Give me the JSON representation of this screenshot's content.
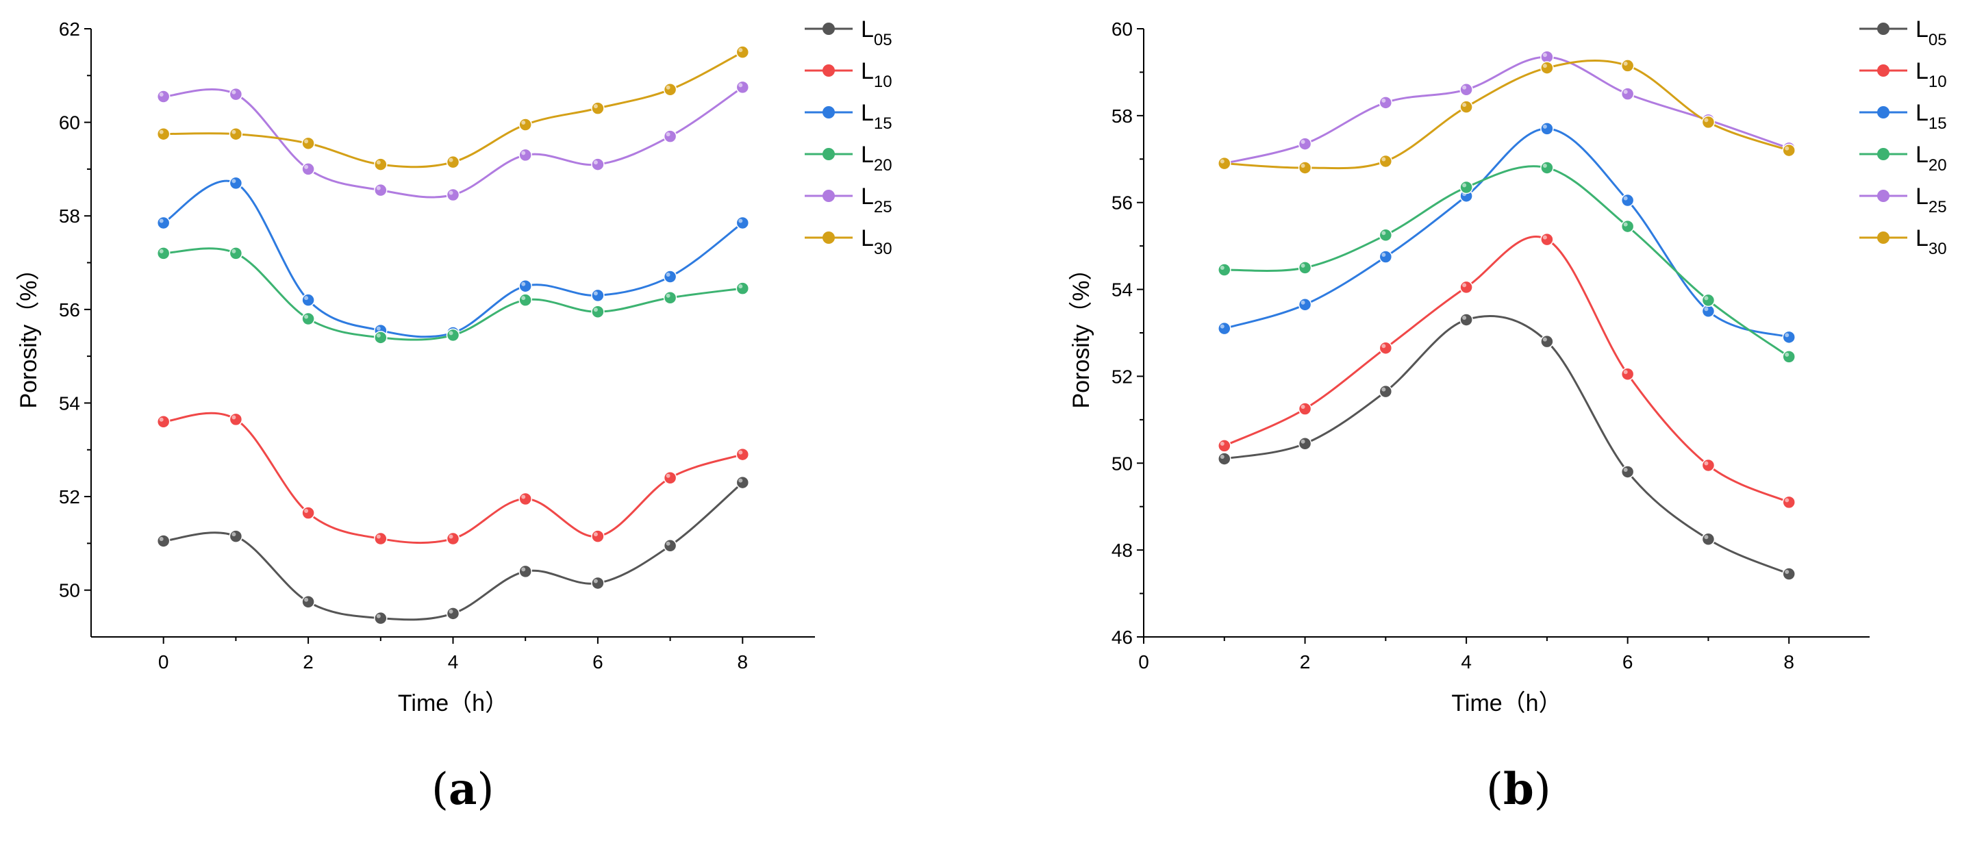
{
  "chart_data": [
    {
      "type": "line",
      "panel_label": "a",
      "xlabel": "Time（h）",
      "ylabel": "Porosity（%）",
      "xlim": [
        -1,
        9
      ],
      "ylim": [
        49,
        62
      ],
      "xticks": [
        0,
        2,
        4,
        6,
        8
      ],
      "yticks": [
        50,
        52,
        54,
        56,
        58,
        60,
        62
      ],
      "legend_position": "top-right",
      "x": [
        0,
        1,
        2,
        3,
        4,
        5,
        6,
        7,
        8
      ],
      "series": [
        {
          "name": "L",
          "sub": "05",
          "color": "#555555",
          "values": [
            51.05,
            51.15,
            49.75,
            49.4,
            49.5,
            50.4,
            50.15,
            50.95,
            52.3
          ]
        },
        {
          "name": "L",
          "sub": "10",
          "color": "#f04848",
          "values": [
            53.6,
            53.65,
            51.65,
            51.1,
            51.1,
            51.95,
            51.15,
            52.4,
            52.9
          ]
        },
        {
          "name": "L",
          "sub": "15",
          "color": "#2e7be0",
          "values": [
            57.85,
            58.7,
            56.2,
            55.55,
            55.5,
            56.5,
            56.3,
            56.7,
            57.85
          ]
        },
        {
          "name": "L",
          "sub": "20",
          "color": "#3cb371",
          "values": [
            57.2,
            57.2,
            55.8,
            55.4,
            55.45,
            56.2,
            55.95,
            56.25,
            56.45
          ]
        },
        {
          "name": "L",
          "sub": "25",
          "color": "#b07be0",
          "values": [
            60.55,
            60.6,
            59.0,
            58.55,
            58.45,
            59.3,
            59.1,
            59.7,
            60.75
          ]
        },
        {
          "name": "L",
          "sub": "30",
          "color": "#d4a017",
          "values": [
            59.75,
            59.75,
            59.55,
            59.1,
            59.15,
            59.95,
            60.3,
            60.7,
            61.5
          ]
        }
      ]
    },
    {
      "type": "line",
      "panel_label": "b",
      "xlabel": "Time（h）",
      "ylabel": "Porosity（%）",
      "xlim": [
        0,
        9
      ],
      "ylim": [
        46,
        60
      ],
      "xticks": [
        0,
        2,
        4,
        6,
        8
      ],
      "yticks": [
        46,
        48,
        50,
        52,
        54,
        56,
        58,
        60
      ],
      "legend_position": "top-right",
      "x": [
        1,
        2,
        3,
        4,
        5,
        6,
        7,
        8
      ],
      "series": [
        {
          "name": "L",
          "sub": "05",
          "color": "#555555",
          "values": [
            50.1,
            50.45,
            51.65,
            53.3,
            52.8,
            49.8,
            48.25,
            47.45
          ]
        },
        {
          "name": "L",
          "sub": "10",
          "color": "#f04848",
          "values": [
            50.4,
            51.25,
            52.65,
            54.05,
            55.15,
            52.05,
            49.95,
            49.1
          ]
        },
        {
          "name": "L",
          "sub": "15",
          "color": "#2e7be0",
          "values": [
            53.1,
            53.65,
            54.75,
            56.15,
            57.7,
            56.05,
            53.5,
            52.9
          ]
        },
        {
          "name": "L",
          "sub": "20",
          "color": "#3cb371",
          "values": [
            54.45,
            54.5,
            55.25,
            56.35,
            56.8,
            55.45,
            53.75,
            52.45
          ]
        },
        {
          "name": "L",
          "sub": "25",
          "color": "#b07be0",
          "values": [
            56.9,
            57.35,
            58.3,
            58.6,
            59.35,
            58.5,
            57.9,
            57.25
          ]
        },
        {
          "name": "L",
          "sub": "30",
          "color": "#d4a017",
          "values": [
            56.9,
            56.8,
            56.95,
            58.2,
            59.1,
            59.15,
            57.85,
            57.2
          ]
        }
      ]
    }
  ]
}
